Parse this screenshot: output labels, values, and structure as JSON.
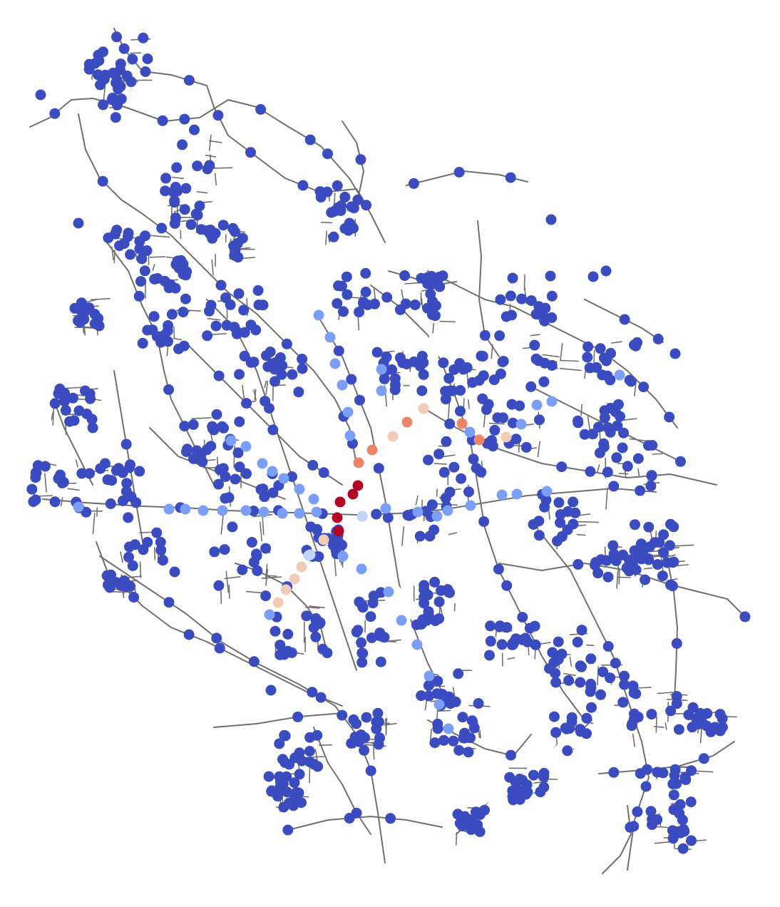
{
  "map": {
    "style": {
      "background": "#ffffff",
      "road_color": "#707070",
      "river_color": "#ffffff"
    },
    "colormap": {
      "name": "coolwarm",
      "stops": [
        "#3b4cc0",
        "#7b9ff9",
        "#c0d4f5",
        "#f2cbb7",
        "#ee8468",
        "#b40426"
      ]
    }
  }
}
